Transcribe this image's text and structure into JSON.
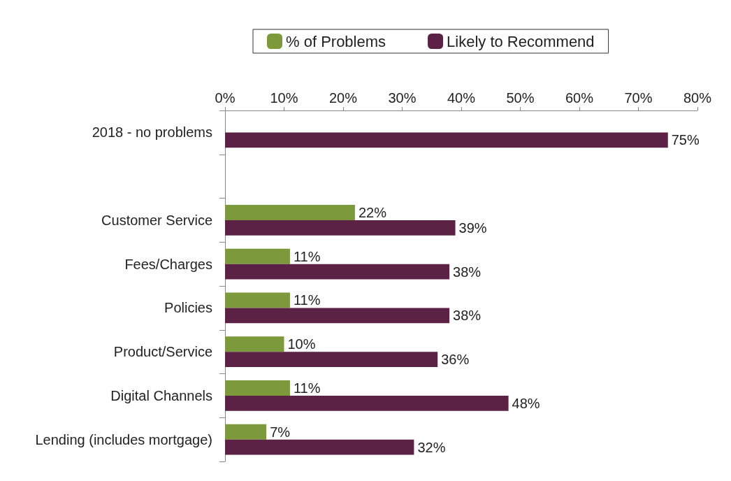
{
  "chart_data": {
    "type": "bar",
    "orientation": "horizontal",
    "categories": [
      "2018 - no problems",
      null,
      "Customer Service",
      "Fees/Charges",
      "Policies",
      "Product/Service",
      "Digital Channels",
      "Lending (includes mortgage)"
    ],
    "series": [
      {
        "name": "% of Problems",
        "color": "#7c9a3c",
        "values": [
          null,
          null,
          22,
          11,
          11,
          10,
          11,
          7
        ],
        "value_labels": [
          null,
          null,
          "22%",
          "11%",
          "11%",
          "10%",
          "11%",
          "7%"
        ]
      },
      {
        "name": "Likely to Recommend",
        "color": "#5b2245",
        "values": [
          75,
          null,
          39,
          38,
          38,
          36,
          48,
          32
        ],
        "value_labels": [
          "75%",
          null,
          "39%",
          "38%",
          "38%",
          "36%",
          "48%",
          "32%"
        ]
      }
    ],
    "xlim": [
      0,
      80
    ],
    "xticks": [
      {
        "value": 0,
        "label": "0%"
      },
      {
        "value": 10,
        "label": "10%"
      },
      {
        "value": 20,
        "label": "20%"
      },
      {
        "value": 30,
        "label": "30%"
      },
      {
        "value": 40,
        "label": "40%"
      },
      {
        "value": 50,
        "label": "50%"
      },
      {
        "value": 60,
        "label": "60%"
      },
      {
        "value": 70,
        "label": "70%"
      },
      {
        "value": 80,
        "label": "80%"
      }
    ],
    "grid": false,
    "legend": "top"
  }
}
